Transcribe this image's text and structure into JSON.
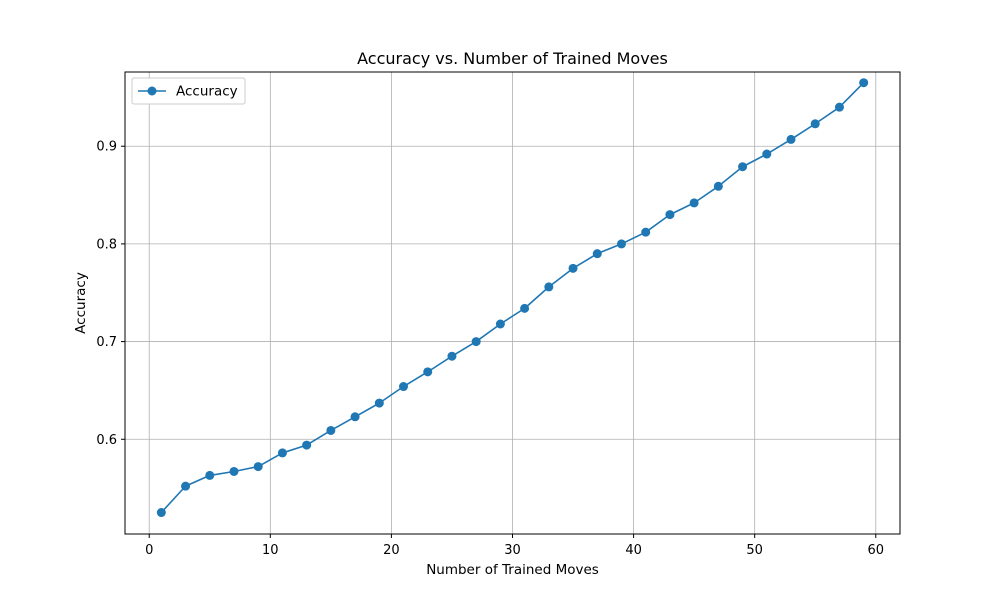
{
  "chart_data": {
    "type": "line",
    "title": "Accuracy vs. Number of Trained Moves",
    "xlabel": "Number of Trained Moves",
    "ylabel": "Accuracy",
    "xlim": [
      -2,
      62
    ],
    "ylim": [
      0.503,
      0.976
    ],
    "xticks": [
      0,
      10,
      20,
      30,
      40,
      50,
      60
    ],
    "yticks": [
      0.6,
      0.7,
      0.8,
      0.9
    ],
    "grid": true,
    "legend_position": "top-left",
    "series": [
      {
        "name": "Accuracy",
        "color": "#1f77b4",
        "marker": "circle",
        "x": [
          1,
          3,
          5,
          7,
          9,
          11,
          13,
          15,
          17,
          19,
          21,
          23,
          25,
          27,
          29,
          31,
          33,
          35,
          37,
          39,
          41,
          43,
          45,
          47,
          49,
          51,
          53,
          55,
          57,
          59
        ],
        "y": [
          0.525,
          0.552,
          0.563,
          0.567,
          0.572,
          0.586,
          0.594,
          0.609,
          0.623,
          0.637,
          0.654,
          0.669,
          0.685,
          0.7,
          0.718,
          0.734,
          0.756,
          0.775,
          0.79,
          0.8,
          0.812,
          0.83,
          0.842,
          0.859,
          0.879,
          0.892,
          0.907,
          0.923,
          0.94,
          0.965
        ]
      }
    ]
  }
}
